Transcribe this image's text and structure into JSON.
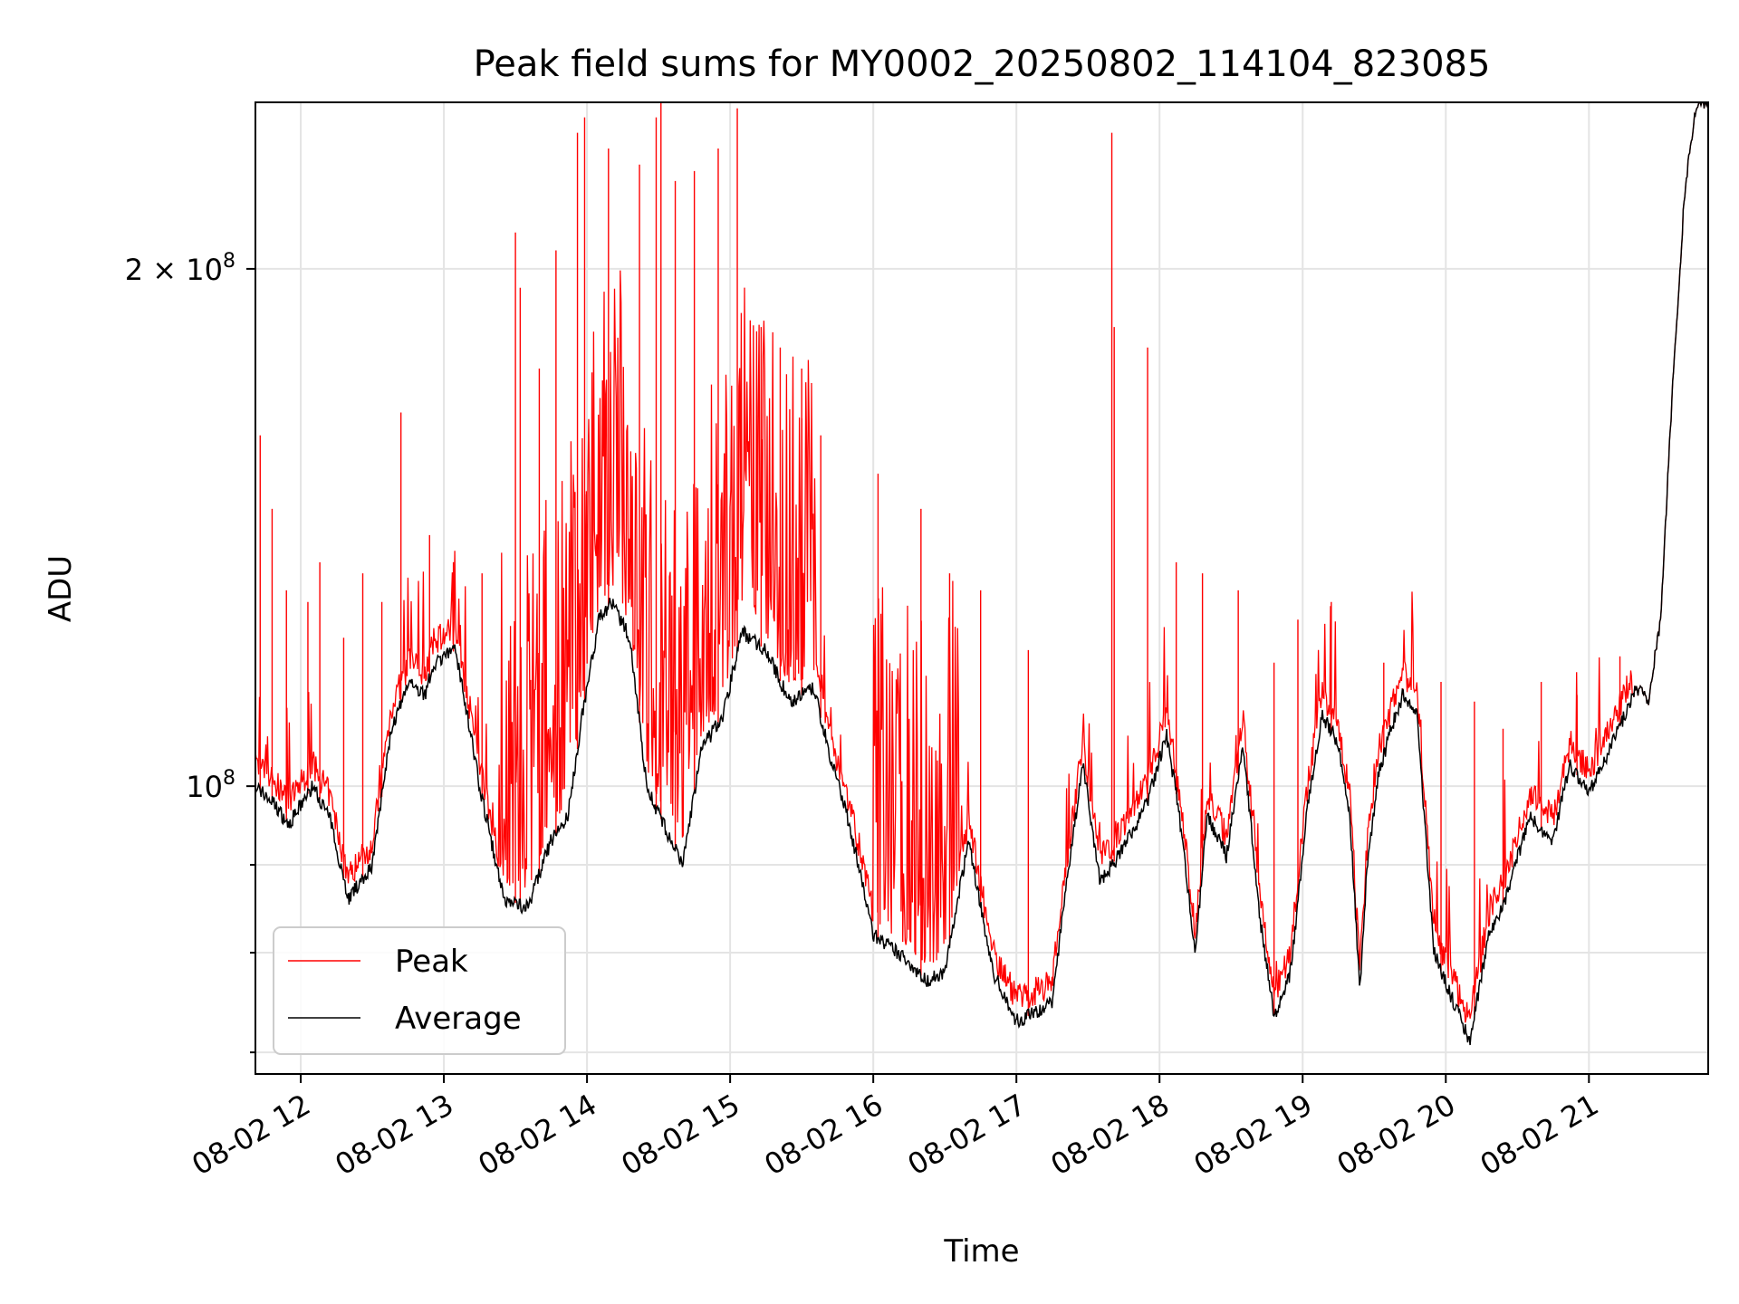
{
  "chart_data": {
    "type": "line",
    "title": "Peak field sums for MY0002_20250802_114104_823085",
    "xlabel": "Time",
    "ylabel": "ADU",
    "yscale": "log",
    "ylim": [
      68000000,
      250000000
    ],
    "xlim": [
      "2025-08-02 11:41",
      "2025-08-02 21:50"
    ],
    "grid": true,
    "legend_position": "lower-left",
    "x_ticks": [
      "08-02 12",
      "08-02 13",
      "08-02 14",
      "08-02 15",
      "08-02 16",
      "08-02 17",
      "08-02 18",
      "08-02 19",
      "08-02 20",
      "08-02 21"
    ],
    "y_ticks": [
      {
        "value": 100000000,
        "label_base": "10",
        "label_exp": "8"
      },
      {
        "value": 200000000,
        "label_base": "2 × 10",
        "label_exp": "8"
      }
    ],
    "y_minor_ticks": [
      70000000,
      80000000,
      90000000
    ],
    "series": [
      {
        "name": "Average",
        "color": "#000000",
        "x": [
          "2025-08-02 11:41",
          "2025-08-02 11:48",
          "2025-08-02 11:55",
          "2025-08-02 12:05",
          "2025-08-02 12:12",
          "2025-08-02 12:20",
          "2025-08-02 12:30",
          "2025-08-02 12:38",
          "2025-08-02 12:46",
          "2025-08-02 12:52",
          "2025-08-02 12:56",
          "2025-08-02 13:05",
          "2025-08-02 13:15",
          "2025-08-02 13:25",
          "2025-08-02 13:35",
          "2025-08-02 13:45",
          "2025-08-02 13:52",
          "2025-08-02 13:58",
          "2025-08-02 14:05",
          "2025-08-02 14:10",
          "2025-08-02 14:18",
          "2025-08-02 14:25",
          "2025-08-02 14:32",
          "2025-08-02 14:40",
          "2025-08-02 14:48",
          "2025-08-02 14:57",
          "2025-08-02 15:05",
          "2025-08-02 15:15",
          "2025-08-02 15:25",
          "2025-08-02 15:35",
          "2025-08-02 15:42",
          "2025-08-02 15:50",
          "2025-08-02 16:00",
          "2025-08-02 16:15",
          "2025-08-02 16:22",
          "2025-08-02 16:30",
          "2025-08-02 16:40",
          "2025-08-02 16:50",
          "2025-08-02 17:00",
          "2025-08-02 17:10",
          "2025-08-02 17:15",
          "2025-08-02 17:22",
          "2025-08-02 17:28",
          "2025-08-02 17:35",
          "2025-08-02 17:45",
          "2025-08-02 17:55",
          "2025-08-02 18:03",
          "2025-08-02 18:08",
          "2025-08-02 18:15",
          "2025-08-02 18:20",
          "2025-08-02 18:28",
          "2025-08-02 18:35",
          "2025-08-02 18:42",
          "2025-08-02 18:48",
          "2025-08-02 18:55",
          "2025-08-02 19:02",
          "2025-08-02 19:08",
          "2025-08-02 19:15",
          "2025-08-02 19:20",
          "2025-08-02 19:24",
          "2025-08-02 19:27",
          "2025-08-02 19:32",
          "2025-08-02 19:38",
          "2025-08-02 19:42",
          "2025-08-02 19:48",
          "2025-08-02 19:55",
          "2025-08-02 20:03",
          "2025-08-02 20:10",
          "2025-08-02 20:18",
          "2025-08-02 20:25",
          "2025-08-02 20:35",
          "2025-08-02 20:45",
          "2025-08-02 20:52",
          "2025-08-02 21:00",
          "2025-08-02 21:10",
          "2025-08-02 21:15",
          "2025-08-02 21:20",
          "2025-08-02 21:25",
          "2025-08-02 21:30",
          "2025-08-02 21:35",
          "2025-08-02 21:40",
          "2025-08-02 21:45",
          "2025-08-02 21:50"
        ],
        "values": [
          100000000,
          98000000,
          95000000,
          100000000,
          96000000,
          86000000,
          90000000,
          108000000,
          115000000,
          113000000,
          118000000,
          120000000,
          100000000,
          86000000,
          85000000,
          93000000,
          96000000,
          110000000,
          125000000,
          128000000,
          122000000,
          100000000,
          95000000,
          90000000,
          105000000,
          110000000,
          123000000,
          120000000,
          112000000,
          114000000,
          104000000,
          95000000,
          82000000,
          79000000,
          77000000,
          78000000,
          93000000,
          78000000,
          73000000,
          74000000,
          75000000,
          90000000,
          103000000,
          88000000,
          92000000,
          98000000,
          107000000,
          97000000,
          80000000,
          96000000,
          91000000,
          106000000,
          84000000,
          73500000,
          78000000,
          97000000,
          110000000,
          106000000,
          95000000,
          76000000,
          90000000,
          102000000,
          109000000,
          113000000,
          110000000,
          80000000,
          75000000,
          71000000,
          82000000,
          86000000,
          96000000,
          93000000,
          103000000,
          99000000,
          106000000,
          110000000,
          114000000,
          112000000,
          125000000,
          170000000,
          220000000,
          250000000,
          250000000
        ]
      },
      {
        "name": "Peak",
        "color": "#ff0000",
        "spikes_x": [
          "2025-08-02 11:43",
          "2025-08-02 11:48",
          "2025-08-02 11:54",
          "2025-08-02 12:03",
          "2025-08-02 12:08",
          "2025-08-02 12:18",
          "2025-08-02 12:26",
          "2025-08-02 12:34",
          "2025-08-02 12:42",
          "2025-08-02 12:54",
          "2025-08-02 13:04",
          "2025-08-02 13:16",
          "2025-08-02 13:30",
          "2025-08-02 13:32",
          "2025-08-02 13:40",
          "2025-08-02 13:47",
          "2025-08-02 13:56",
          "2025-08-02 13:59",
          "2025-08-02 14:09",
          "2025-08-02 14:22",
          "2025-08-02 14:29",
          "2025-08-02 14:31",
          "2025-08-02 14:37",
          "2025-08-02 14:45",
          "2025-08-02 14:55",
          "2025-08-02 15:03",
          "2025-08-02 15:13",
          "2025-08-02 15:21",
          "2025-08-02 15:30",
          "2025-08-02 15:38",
          "2025-08-02 16:02",
          "2025-08-02 16:20",
          "2025-08-02 16:32",
          "2025-08-02 16:45",
          "2025-08-02 17:05",
          "2025-08-02 17:40",
          "2025-08-02 17:41",
          "2025-08-02 17:55",
          "2025-08-02 18:07",
          "2025-08-02 18:18",
          "2025-08-02 18:33",
          "2025-08-02 18:48",
          "2025-08-02 18:58",
          "2025-08-02 19:12",
          "2025-08-02 19:34",
          "2025-08-02 19:42",
          "2025-08-02 19:58",
          "2025-08-02 20:12",
          "2025-08-02 20:24",
          "2025-08-02 20:40",
          "2025-08-02 20:55",
          "2025-08-02 21:13"
        ],
        "spikes_values": [
          160000000,
          145000000,
          130000000,
          128000000,
          135000000,
          122000000,
          133000000,
          128000000,
          165000000,
          140000000,
          135000000,
          133000000,
          210000000,
          195000000,
          175000000,
          205000000,
          240000000,
          245000000,
          235000000,
          230000000,
          245000000,
          250000000,
          225000000,
          228000000,
          235000000,
          248000000,
          185000000,
          180000000,
          175000000,
          160000000,
          152000000,
          145000000,
          133000000,
          130000000,
          120000000,
          240000000,
          185000000,
          180000000,
          135000000,
          133000000,
          130000000,
          118000000,
          125000000,
          128000000,
          118000000,
          114000000,
          115000000,
          112000000,
          108000000,
          115000000,
          113000000,
          119000000
        ]
      }
    ]
  }
}
